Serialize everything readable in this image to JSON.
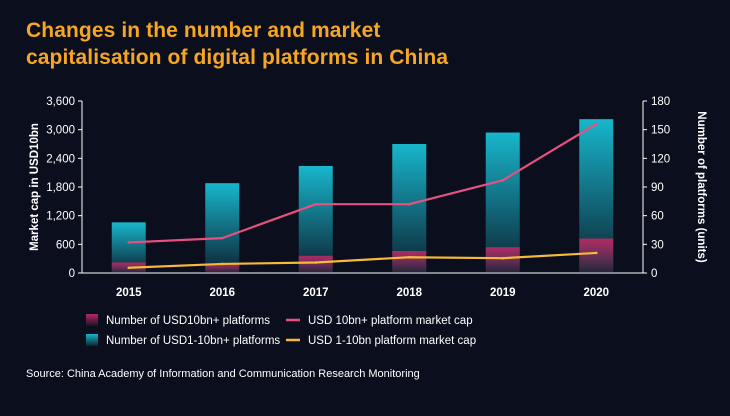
{
  "title_lines": [
    "Changes in the number and market",
    "capitalisation of digital platforms in China"
  ],
  "source": "Source: China Academy of Information and Communication Research Monitoring",
  "colors": {
    "background": "#0b0f1d",
    "title": "#f6a623",
    "bar_10bn": "#b02a63",
    "bar_1_10bn": "#18b6cc",
    "line_10bn": "#e8507f",
    "line_1_10bn": "#f6b93b",
    "axis": "#ffffff"
  },
  "chart_data": {
    "type": "bar",
    "categories": [
      "2015",
      "2016",
      "2017",
      "2018",
      "2019",
      "2020"
    ],
    "series": [
      {
        "name": "Number of USD10bn+ platforms",
        "type": "bar",
        "axis": "right",
        "values": [
          11,
          10,
          18,
          23,
          27,
          36
        ]
      },
      {
        "name": "Number of USD1-10bn+ platforms",
        "type": "bar",
        "axis": "right",
        "values": [
          53,
          94,
          112,
          135,
          147,
          161
        ]
      },
      {
        "name": "USD 10bn+ platform market cap",
        "type": "line",
        "axis": "left",
        "values": [
          640,
          730,
          1440,
          1440,
          1940,
          3120
        ]
      },
      {
        "name": "USD 1-10bn platform market cap",
        "type": "line",
        "axis": "left",
        "values": [
          110,
          190,
          220,
          330,
          310,
          420
        ]
      }
    ],
    "ylabel": "Market cap in USD10bn",
    "y2label": "Number of platforms (units)",
    "ylim": [
      0,
      3600
    ],
    "y2lim": [
      0,
      180
    ],
    "yticks": [
      "0",
      "600",
      "1,200",
      "1,800",
      "2,400",
      "3,000",
      "3,600"
    ],
    "y2ticks": [
      "0",
      "30",
      "60",
      "90",
      "120",
      "150",
      "180"
    ],
    "legend_position": "bottom",
    "grid": false
  }
}
